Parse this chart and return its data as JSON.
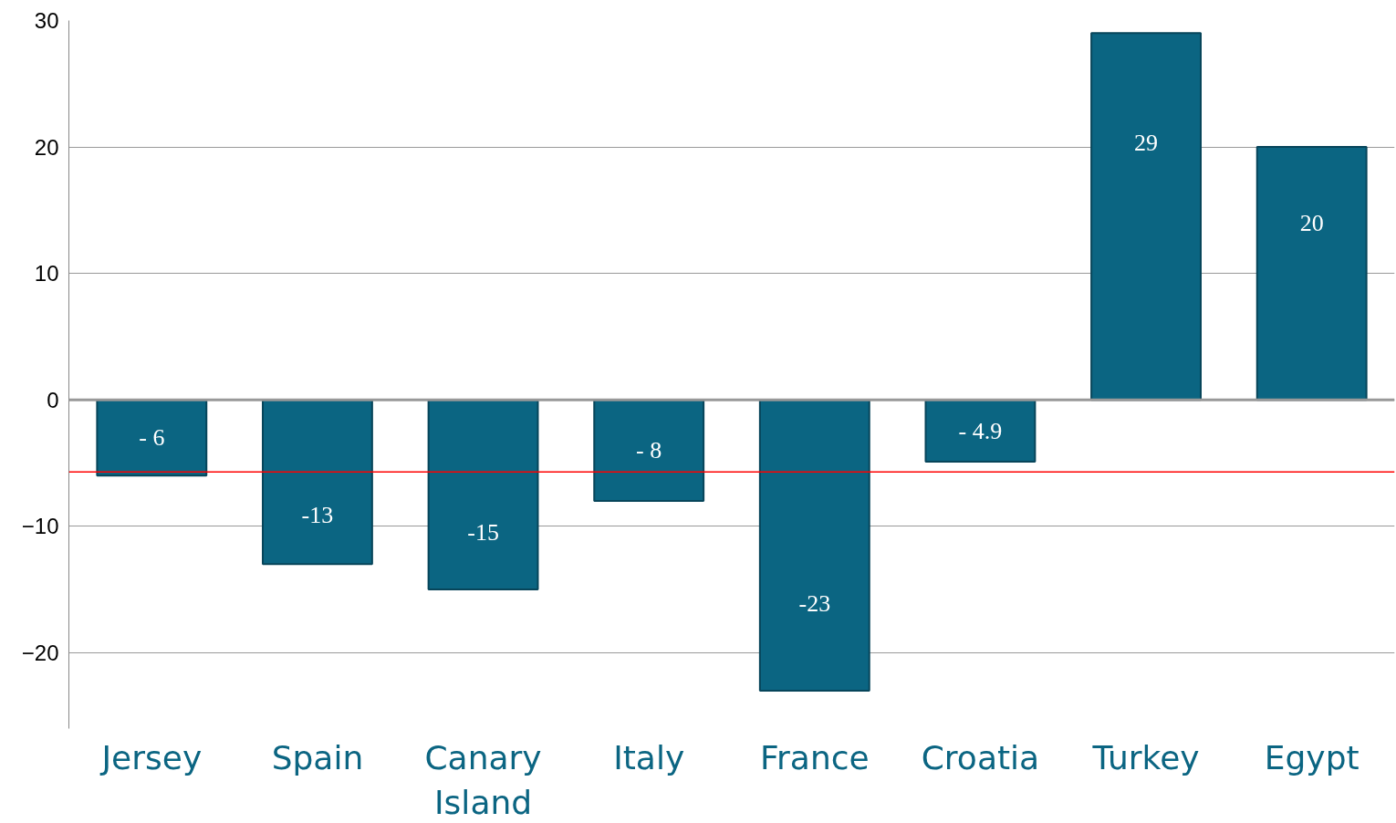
{
  "chart_data": {
    "type": "bar",
    "categories": [
      "Jersey",
      "Spain",
      "Canary\nIsland",
      "Italy",
      "France",
      "Croatia",
      "Turkey",
      "Egypt"
    ],
    "values": [
      -6,
      -13,
      -15,
      -8,
      -23,
      -4.9,
      29,
      20
    ],
    "value_labels": [
      "- 6",
      "-13",
      "-15",
      "- 8",
      "-23",
      "- 4.9",
      "29",
      "20"
    ],
    "color": "#0b6582",
    "ylim": [
      -26,
      30
    ],
    "yticks": [
      -20,
      -10,
      0,
      10,
      20,
      30
    ],
    "grid": "y",
    "ref_lines": [
      {
        "axis": "y",
        "value": -5.7,
        "label": null,
        "color": "#ff0000"
      }
    ]
  }
}
